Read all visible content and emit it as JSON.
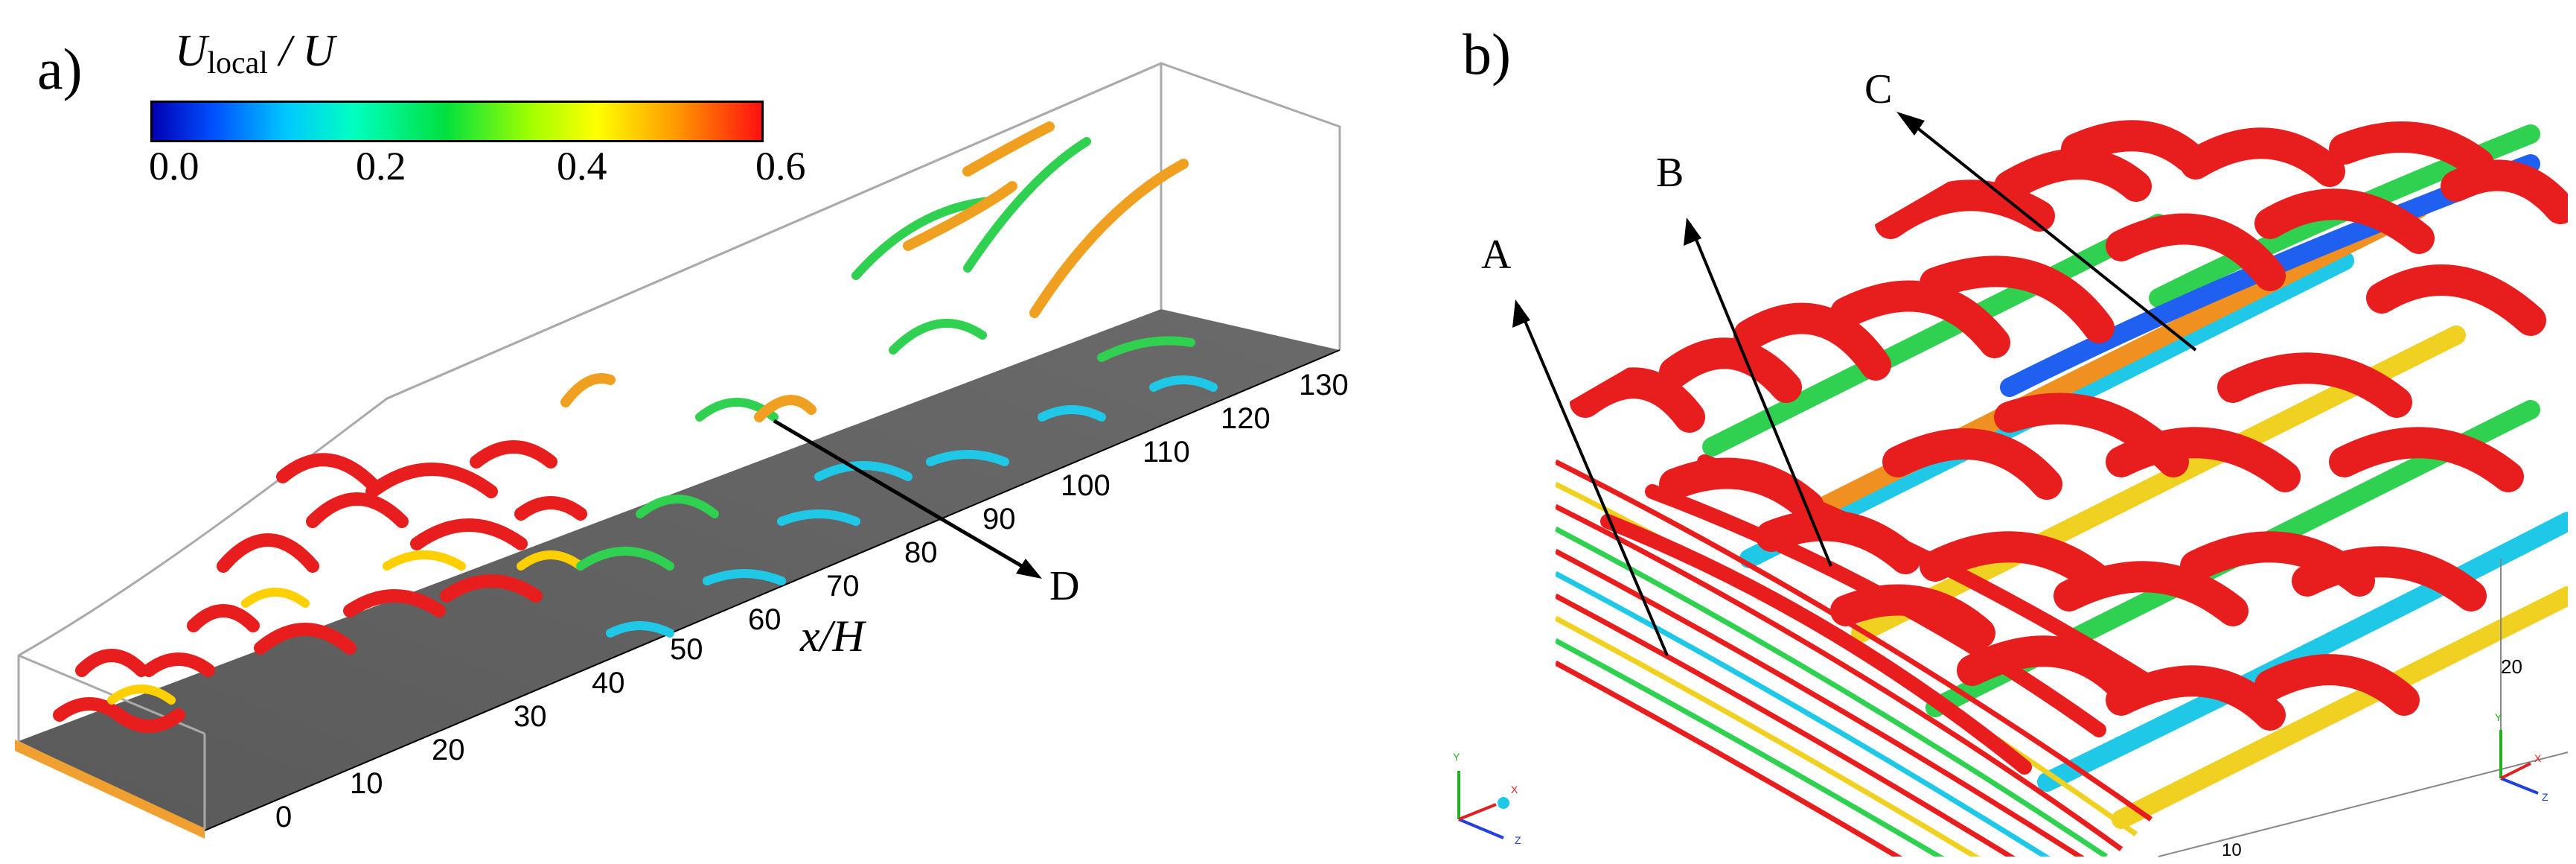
{
  "panel_a": {
    "label": "a)",
    "colorbar": {
      "title_main": "U",
      "title_sub": "local",
      "title_tail": " / U",
      "ticks": [
        "0.0",
        "0.2",
        "0.4",
        "0.6"
      ],
      "colors": [
        "#0000b4",
        "#00c8ff",
        "#00e040",
        "#ffff00",
        "#ff1010"
      ]
    },
    "x_ticks": [
      "0",
      "10",
      "20",
      "30",
      "40",
      "50",
      "60",
      "70",
      "80",
      "90",
      "100",
      "110",
      "120",
      "130"
    ],
    "x_axis_title": "x/H",
    "annotation": "D"
  },
  "panel_b": {
    "label": "b)",
    "annotations": [
      "A",
      "B",
      "C"
    ],
    "ticks": [
      "20",
      "10"
    ]
  },
  "triad": {
    "y": "Y",
    "x": "X",
    "z": "Z"
  }
}
